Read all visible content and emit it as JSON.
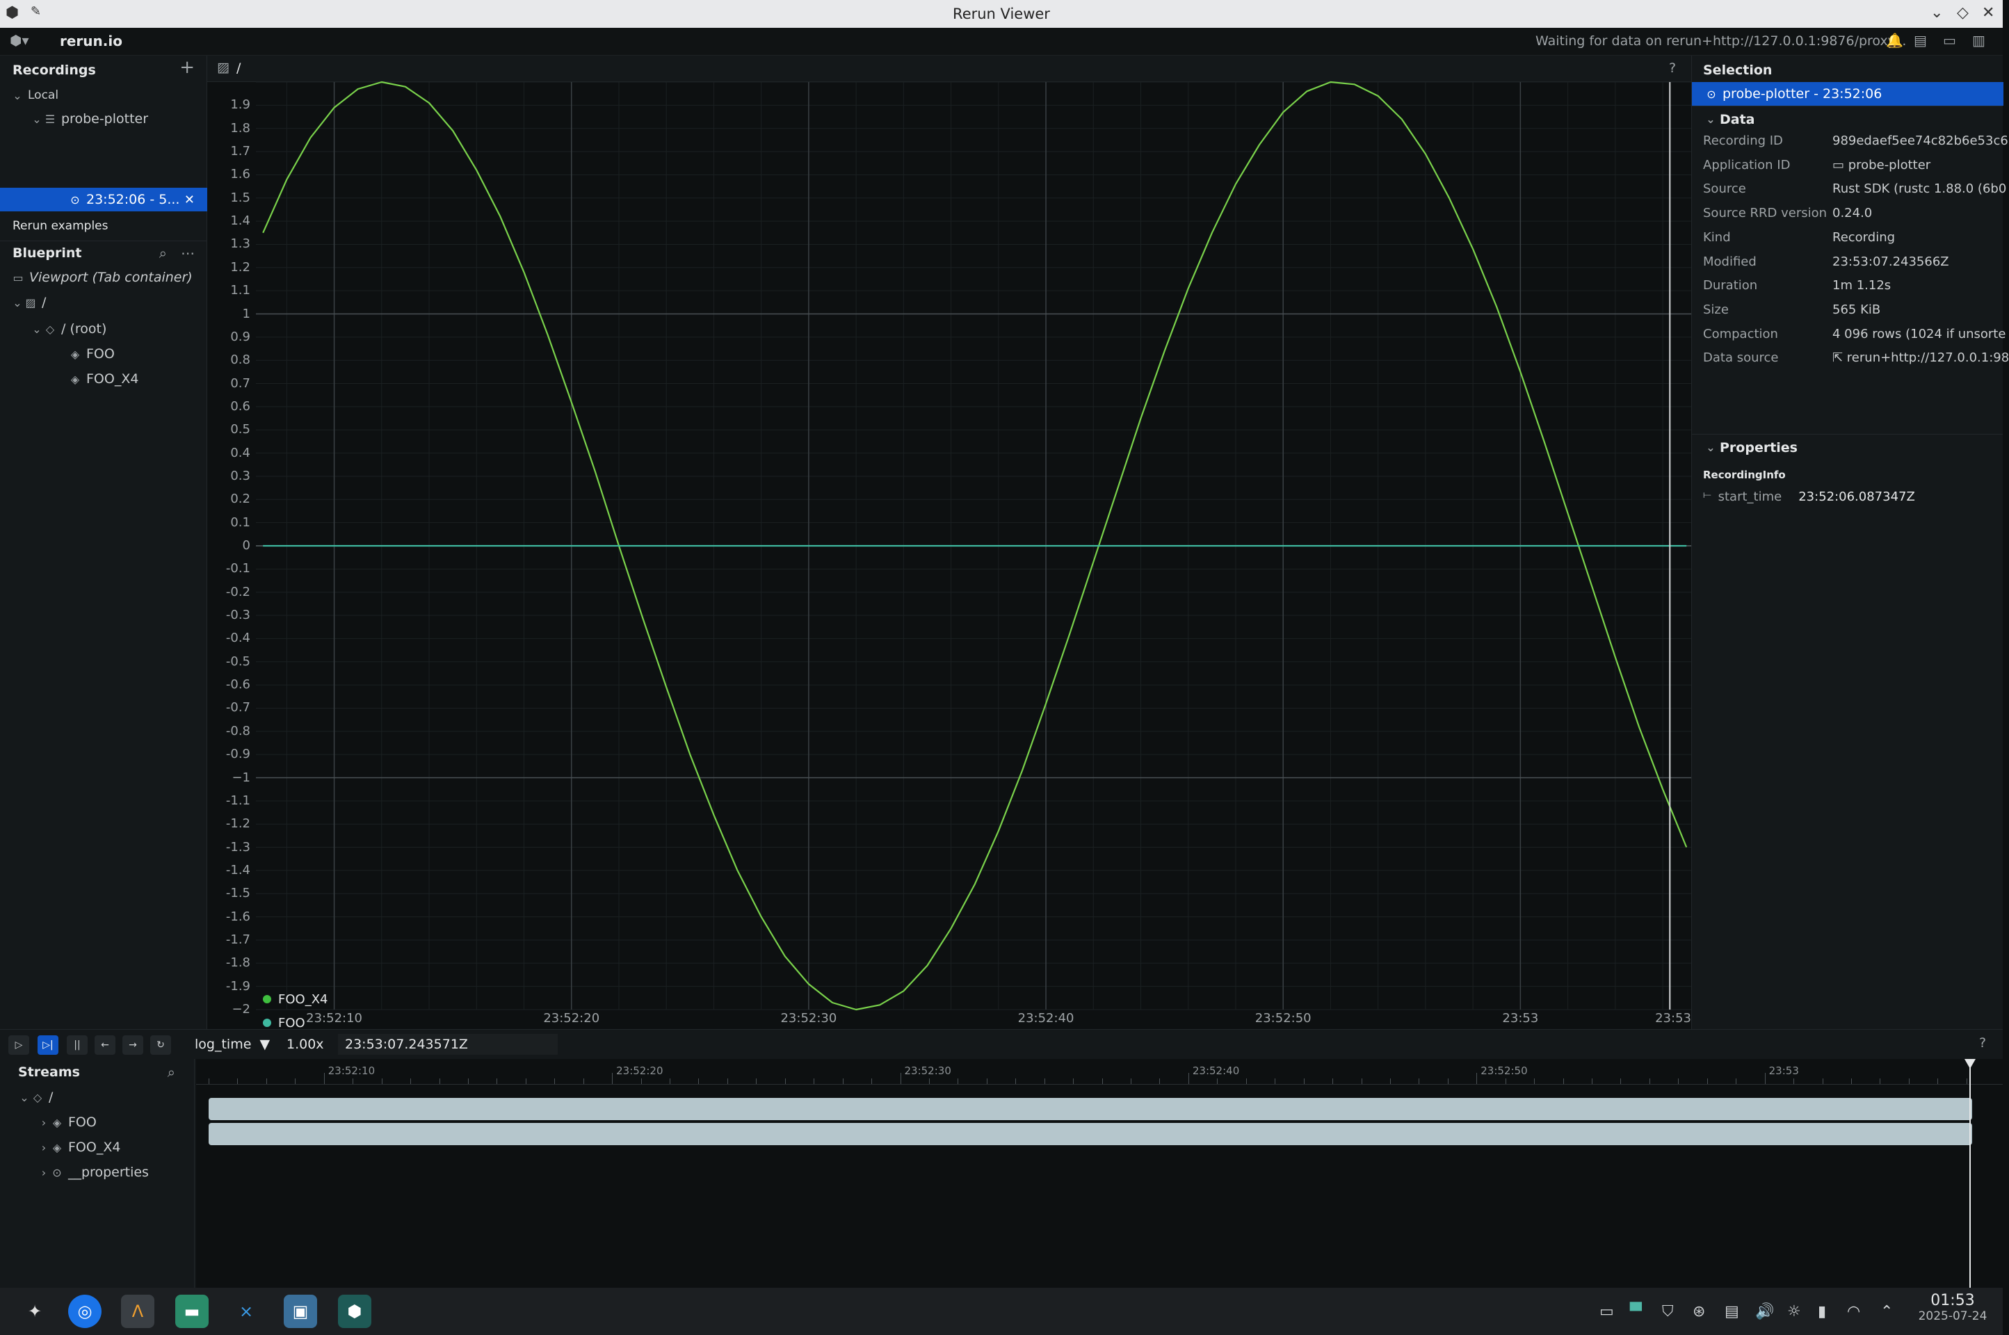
{
  "window": {
    "title": "Rerun Viewer"
  },
  "topbar": {
    "brand": "rerun.io",
    "status": "Waiting for data on rerun+http://127.0.0.1:9876/proxy..."
  },
  "recordings": {
    "header": "Recordings",
    "local_label": "Local",
    "app_name": "probe-plotter",
    "recording_label": "23:52:06 - 5...",
    "examples_label": "Rerun examples"
  },
  "blueprint": {
    "header": "Blueprint",
    "viewport_label": "Viewport (Tab container)",
    "view_label": "/",
    "root_label": "/ (root)",
    "entities": [
      "FOO",
      "FOO_X4"
    ]
  },
  "plot": {
    "tab_label": "/",
    "help": "?",
    "legend": [
      {
        "name": "FOO_X4",
        "color": "#3fbf3f"
      },
      {
        "name": "FOO",
        "color": "#3fb9a0"
      }
    ]
  },
  "chart_data": {
    "type": "line",
    "title": "",
    "xlabel": "",
    "ylabel": "",
    "ylim": [
      -2,
      2
    ],
    "y_ticks": [
      "1.9",
      "1.8",
      "1.7",
      "1.6",
      "1.5",
      "1.4",
      "1.3",
      "1.2",
      "1.1",
      "1",
      "0.9",
      "0.8",
      "0.7",
      "0.6",
      "0.5",
      "0.4",
      "0.3",
      "0.2",
      "0.1",
      "0",
      "-0.1",
      "-0.2",
      "-0.3",
      "-0.4",
      "-0.5",
      "-0.6",
      "-0.7",
      "-0.8",
      "-0.9",
      "−1",
      "-1.1",
      "-1.2",
      "-1.3",
      "-1.4",
      "-1.5",
      "-1.6",
      "-1.7",
      "-1.8",
      "-1.9",
      "−2"
    ],
    "x_ticks": [
      "23:52:10",
      "23:52:20",
      "23:52:30",
      "23:52:40",
      "23:52:50",
      "23:53",
      "23:53"
    ],
    "x_range_seconds": [
      6.7,
      67.2
    ],
    "grid": true,
    "legend_position": "bottom-left",
    "series": [
      {
        "name": "FOO_X4",
        "color": "#7ad24b",
        "x_seconds": [
          7,
          8,
          9,
          10,
          11,
          12,
          13,
          14,
          15,
          16,
          17,
          18,
          19,
          20,
          21,
          22,
          23,
          24,
          25,
          26,
          27,
          28,
          29,
          30,
          31,
          32,
          33,
          34,
          35,
          36,
          37,
          38,
          39,
          40,
          41,
          42,
          43,
          44,
          45,
          46,
          47,
          48,
          49,
          50,
          51,
          52,
          53,
          54,
          55,
          56,
          57,
          58,
          59,
          60,
          61,
          62,
          63,
          64,
          65,
          66,
          67
        ],
        "y": [
          1.35,
          1.58,
          1.76,
          1.89,
          1.97,
          2.0,
          1.98,
          1.91,
          1.79,
          1.62,
          1.42,
          1.18,
          0.91,
          0.62,
          0.32,
          0.0,
          -0.31,
          -0.61,
          -0.9,
          -1.16,
          -1.4,
          -1.6,
          -1.77,
          -1.89,
          -1.97,
          -2.0,
          -1.98,
          -1.92,
          -1.81,
          -1.65,
          -1.46,
          -1.23,
          -0.97,
          -0.68,
          -0.38,
          -0.07,
          0.24,
          0.55,
          0.84,
          1.11,
          1.35,
          1.56,
          1.73,
          1.87,
          1.96,
          2.0,
          1.99,
          1.94,
          1.84,
          1.69,
          1.5,
          1.28,
          1.03,
          0.75,
          0.45,
          0.14,
          -0.17,
          -0.48,
          -0.78,
          -1.05,
          -1.3
        ]
      },
      {
        "name": "FOO",
        "color": "#3fb9a0",
        "x_seconds": [
          7,
          67
        ],
        "y": [
          0,
          0
        ]
      }
    ]
  },
  "selection": {
    "header": "Selection",
    "selected": "probe-plotter - 23:52:06",
    "data_header": "Data",
    "fields": [
      {
        "key": "Recording ID",
        "value": "989edaef5ee74c82b6e53c6"
      },
      {
        "key": "Application ID",
        "value": "probe-plotter"
      },
      {
        "key": "Source",
        "value": "Rust SDK (rustc 1.88.0 (6b0"
      },
      {
        "key": "Source RRD version",
        "value": "0.24.0"
      },
      {
        "key": "Kind",
        "value": "Recording"
      },
      {
        "key": "Modified",
        "value": "23:53:07.243566Z"
      },
      {
        "key": "Duration",
        "value": "1m 1.12s"
      },
      {
        "key": "Size",
        "value": "565 KiB"
      },
      {
        "key": "Compaction",
        "value": "4 096 rows (1024 if unsorte"
      },
      {
        "key": "Data source",
        "value": "rerun+http://127.0.0.1:98"
      }
    ],
    "properties_header": "Properties",
    "recording_info": "RecordingInfo",
    "start_time_key": "start_time",
    "start_time_value": "23:52:06.087347Z"
  },
  "timeline": {
    "timeline_name": "log_time",
    "speed": "1.00x",
    "current_time": "23:53:07.243571Z",
    "help": "?",
    "ticks": [
      "23:52:10",
      "23:52:20",
      "23:52:30",
      "23:52:40",
      "23:52:50",
      "23:53"
    ],
    "streams_header": "Streams",
    "root": "/",
    "streams": [
      "FOO",
      "FOO_X4",
      "__properties"
    ]
  },
  "taskbar": {
    "clock": "01:53",
    "date": "2025-07-24"
  }
}
